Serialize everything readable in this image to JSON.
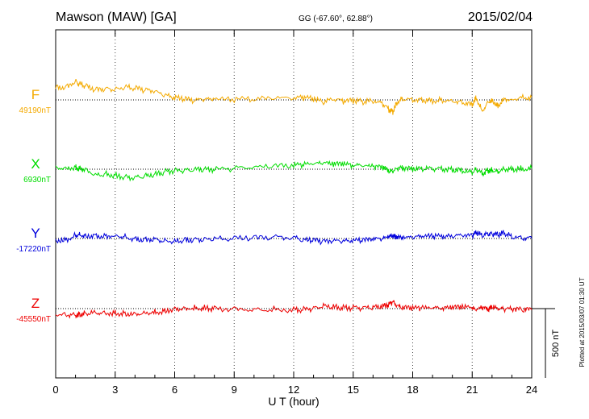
{
  "header": {
    "station": "Mawson (MAW)  [GA]",
    "coords": "GG (-67.60°,  62.88°)",
    "date": "2015/02/04"
  },
  "plotted_note": "Plotted at 2015/03/07 01:30 UT",
  "scale_bar_label": "500 nT",
  "chart_data": {
    "type": "line",
    "title": "Mawson (MAW)  [GA]",
    "xlabel": "U T (hour)",
    "xlim": [
      0,
      24
    ],
    "x_ticks": [
      "0",
      "3",
      "6",
      "9",
      "12",
      "15",
      "18",
      "21",
      "24"
    ],
    "grid": true,
    "scale_bar_nT": 500,
    "x": [
      0,
      0.5,
      1,
      1.2,
      1.5,
      2,
      2.5,
      3,
      3.5,
      4,
      4.5,
      5,
      5.5,
      6,
      6.5,
      7,
      7.5,
      8,
      9,
      10,
      11,
      12,
      12.5,
      13,
      13.5,
      14,
      14.5,
      15,
      15.5,
      16,
      16.5,
      16.8,
      17,
      17.2,
      17.5,
      18,
      18.5,
      19,
      19.5,
      20,
      20.5,
      21,
      21.2,
      21.5,
      21.8,
      22,
      22.3,
      22.6,
      23,
      23.5,
      24
    ],
    "series": [
      {
        "name": "F",
        "baseline_label": "49190nT",
        "color": "#f4aa00",
        "values": [
          90,
          95,
          135,
          115,
          100,
          75,
          80,
          75,
          90,
          85,
          70,
          60,
          30,
          15,
          5,
          -5,
          0,
          0,
          0,
          5,
          10,
          10,
          15,
          5,
          -20,
          5,
          -10,
          -5,
          -15,
          -10,
          -30,
          -70,
          -85,
          -20,
          10,
          0,
          0,
          -5,
          0,
          -5,
          -15,
          -30,
          20,
          -80,
          -10,
          0,
          -40,
          10,
          5,
          20,
          20
        ]
      },
      {
        "name": "X",
        "baseline_label": "6930nT",
        "color": "#00dd00",
        "values": [
          15,
          10,
          15,
          5,
          0,
          -40,
          -35,
          -45,
          -55,
          -60,
          -50,
          -40,
          -20,
          -10,
          -10,
          -5,
          -5,
          -5,
          5,
          10,
          20,
          25,
          30,
          35,
          40,
          35,
          35,
          25,
          20,
          15,
          10,
          -15,
          -20,
          5,
          5,
          0,
          0,
          5,
          0,
          -5,
          -10,
          -25,
          0,
          -30,
          -10,
          -5,
          -15,
          5,
          0,
          5,
          5
        ]
      },
      {
        "name": "Y",
        "baseline_label": "-17220nT",
        "color": "#0000dd",
        "values": [
          -10,
          -10,
          25,
          30,
          20,
          20,
          20,
          25,
          15,
          -5,
          -5,
          -5,
          -15,
          -20,
          -10,
          -10,
          -5,
          -5,
          0,
          5,
          10,
          5,
          -15,
          -15,
          -25,
          -20,
          -20,
          -20,
          -15,
          -10,
          -5,
          10,
          15,
          5,
          0,
          5,
          10,
          15,
          10,
          15,
          20,
          15,
          40,
          20,
          30,
          35,
          25,
          40,
          10,
          5,
          0
        ]
      },
      {
        "name": "Z",
        "baseline_label": "-45550nT",
        "color": "#ee0000",
        "values": [
          -40,
          -40,
          -45,
          -40,
          -35,
          -25,
          -30,
          -30,
          -35,
          -35,
          -30,
          -25,
          -15,
          0,
          5,
          5,
          5,
          0,
          0,
          -5,
          -5,
          -10,
          -5,
          0,
          20,
          10,
          5,
          5,
          5,
          5,
          15,
          25,
          50,
          15,
          5,
          0,
          0,
          0,
          0,
          5,
          10,
          0,
          -15,
          5,
          -10,
          10,
          -5,
          -5,
          -5,
          -10,
          -10
        ]
      }
    ]
  }
}
